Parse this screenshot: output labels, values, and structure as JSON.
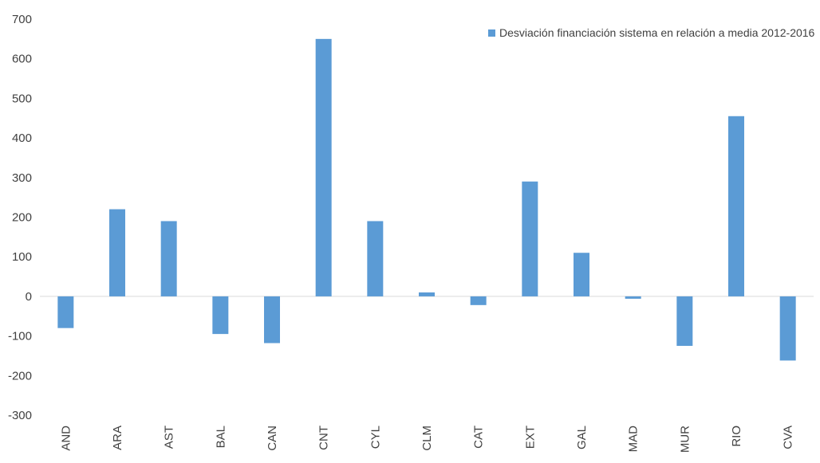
{
  "chart_data": {
    "type": "bar",
    "title": "",
    "xlabel": "",
    "ylabel": "",
    "categories": [
      "AND",
      "ARA",
      "AST",
      "BAL",
      "CAN",
      "CNT",
      "CYL",
      "CLM",
      "CAT",
      "EXT",
      "GAL",
      "MAD",
      "MUR",
      "RIO",
      "CVA"
    ],
    "series": [
      {
        "name": "Desviación financiación sistema en relación a media 2012-2016",
        "values": [
          -80,
          220,
          190,
          -95,
          -118,
          650,
          190,
          10,
          -22,
          290,
          110,
          -6,
          -125,
          455,
          -162
        ]
      }
    ],
    "ylim": [
      -300,
      700
    ],
    "yticks": [
      -300,
      -200,
      -100,
      0,
      100,
      200,
      300,
      400,
      500,
      600,
      700
    ],
    "grid": false,
    "legend_position": "top-right",
    "colors": {
      "bar": "#5B9BD5",
      "axis": "#D9D9D9",
      "text": "#404040"
    }
  }
}
